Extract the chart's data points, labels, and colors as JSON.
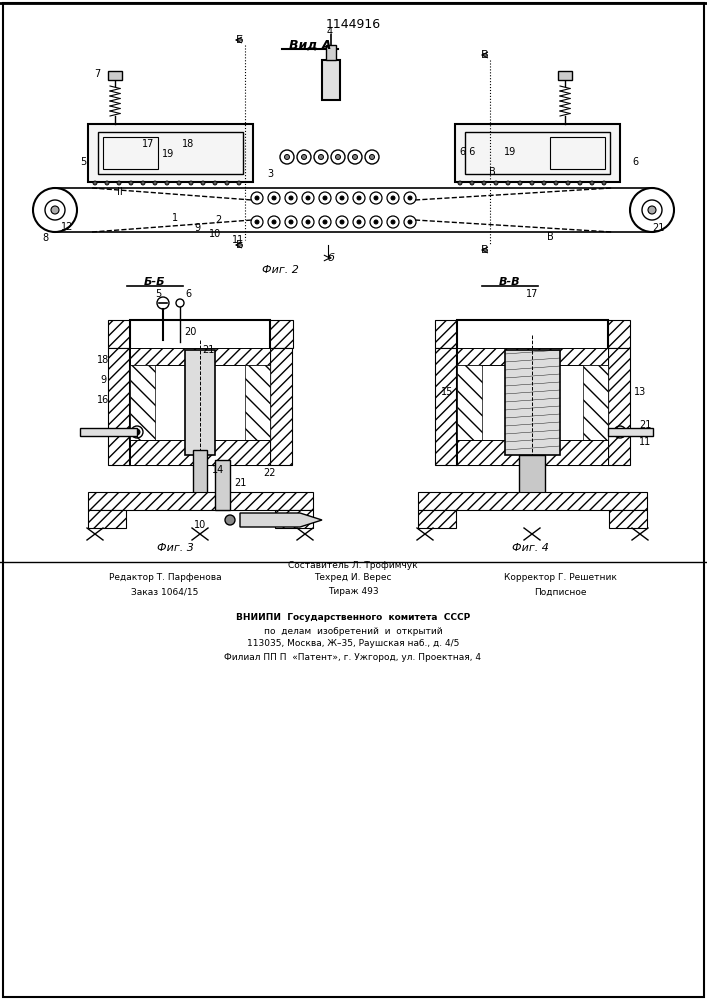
{
  "title": "1144916",
  "view_a_label": "Вид А",
  "fig2_label": "Фиг. 2",
  "fig3_label": "Фиг. 3",
  "fig4_label": "Фиг. 4",
  "section_bb": "Б-Б",
  "section_vv": "В-В",
  "footer_left_line1": "Редактор Т. Парфенова",
  "footer_left_line2": "Заказ 1064/15",
  "footer_center_line1": "Составитель Л. Трофимчук",
  "footer_center_line2": "Техред И. Верес",
  "footer_center_line3": "Тираж 493",
  "footer_right_line1": "Корректор Г. Решетник",
  "footer_right_line2": "Подписное",
  "footer_vniip1": "ВНИИПИ  Государственного  комитета  СССР",
  "footer_vniip2": "по  делам  изобретений  и  открытий",
  "footer_vniip3": "113035, Москва, Ж–35, Раушская наб., д. 4/5",
  "footer_vniip4": "Филиал ПП П  «Патент», г. Ужгород, ул. Проектная, 4",
  "bg_color": "#ffffff",
  "line_color": "#000000"
}
